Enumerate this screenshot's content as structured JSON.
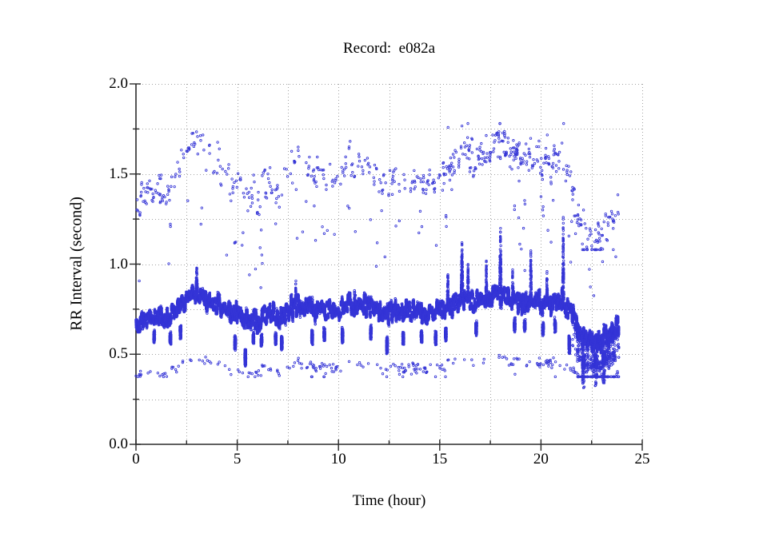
{
  "page": {
    "background": "#ffffff"
  },
  "chart_data": {
    "type": "scatter",
    "title": "Record:  e082a",
    "xlabel": "Time (hour)",
    "ylabel": "RR Interval (second)",
    "xlim": [
      0,
      25
    ],
    "ylim": [
      0.0,
      2.0
    ],
    "x_ticks": {
      "values": [
        0,
        5,
        10,
        15,
        20,
        25
      ],
      "labels": [
        "0",
        "5",
        "10",
        "15",
        "20",
        "25"
      ],
      "minor_values": [
        2.5,
        7.5,
        12.5,
        17.5,
        22.5
      ]
    },
    "y_ticks": {
      "values": [
        0.0,
        0.5,
        1.0,
        1.5,
        2.0
      ],
      "labels": [
        "0.0",
        "0.5",
        "1.0",
        "1.5",
        "2.0"
      ],
      "minor_values": [
        0.25,
        0.75,
        1.25,
        1.75
      ]
    },
    "grid": {
      "show": true,
      "style": "dotted",
      "color": "#a3a3a3",
      "x_step": 2.5,
      "y_step": 0.25
    },
    "axis_color": "#2b2b2b",
    "text_color": "#000000",
    "marker": {
      "shape": "open-circle",
      "color": "#3535d6",
      "radius": 1.25,
      "stroke_width": 0.85
    },
    "legend": {
      "show": false
    },
    "series": [
      {
        "name": "RR intervals",
        "time_start_hours": 0.0,
        "time_end_hours": 23.85,
        "seed": 1306421,
        "band_profile": [
          [
            0.0,
            0.66
          ],
          [
            0.5,
            0.7
          ],
          [
            1.0,
            0.72
          ],
          [
            1.5,
            0.71
          ],
          [
            2.0,
            0.76
          ],
          [
            2.5,
            0.81
          ],
          [
            3.0,
            0.83
          ],
          [
            3.5,
            0.8
          ],
          [
            4.0,
            0.78
          ],
          [
            4.5,
            0.74
          ],
          [
            5.0,
            0.72
          ],
          [
            5.5,
            0.7
          ],
          [
            6.0,
            0.69
          ],
          [
            6.5,
            0.73
          ],
          [
            7.0,
            0.72
          ],
          [
            7.5,
            0.75
          ],
          [
            8.0,
            0.78
          ],
          [
            8.5,
            0.76
          ],
          [
            9.0,
            0.74
          ],
          [
            9.5,
            0.74
          ],
          [
            10.0,
            0.75
          ],
          [
            10.5,
            0.78
          ],
          [
            11.0,
            0.79
          ],
          [
            11.5,
            0.77
          ],
          [
            12.0,
            0.75
          ],
          [
            12.5,
            0.73
          ],
          [
            13.0,
            0.74
          ],
          [
            13.5,
            0.75
          ],
          [
            14.0,
            0.73
          ],
          [
            14.5,
            0.72
          ],
          [
            15.0,
            0.74
          ],
          [
            15.5,
            0.77
          ],
          [
            16.0,
            0.8
          ],
          [
            16.5,
            0.79
          ],
          [
            17.0,
            0.8
          ],
          [
            17.5,
            0.82
          ],
          [
            18.0,
            0.83
          ],
          [
            18.5,
            0.8
          ],
          [
            19.0,
            0.79
          ],
          [
            19.5,
            0.81
          ],
          [
            20.0,
            0.79
          ],
          [
            20.5,
            0.78
          ],
          [
            21.0,
            0.81
          ],
          [
            21.5,
            0.73
          ],
          [
            22.0,
            0.6
          ],
          [
            22.5,
            0.57
          ],
          [
            23.0,
            0.58
          ],
          [
            23.5,
            0.63
          ],
          [
            24.0,
            0.68
          ]
        ],
        "up_spikes": [
          {
            "t": 3.0,
            "top": 0.95,
            "w": 0.04
          },
          {
            "t": 7.9,
            "top": 0.92,
            "w": 0.03
          },
          {
            "t": 10.8,
            "top": 0.93,
            "w": 0.05
          },
          {
            "t": 15.4,
            "top": 0.96,
            "w": 0.04
          },
          {
            "t": 16.1,
            "top": 1.12,
            "w": 0.05
          },
          {
            "t": 16.4,
            "top": 1.0,
            "w": 0.03
          },
          {
            "t": 17.3,
            "top": 1.02,
            "w": 0.04
          },
          {
            "t": 18.0,
            "top": 1.27,
            "w": 0.05
          },
          {
            "t": 18.6,
            "top": 0.98,
            "w": 0.03
          },
          {
            "t": 19.5,
            "top": 1.1,
            "w": 0.04
          },
          {
            "t": 20.3,
            "top": 0.92,
            "w": 0.04
          },
          {
            "t": 21.1,
            "top": 1.27,
            "w": 0.04
          }
        ],
        "down_spikes": [
          {
            "t": 0.9,
            "low": 0.56
          },
          {
            "t": 1.7,
            "low": 0.55
          },
          {
            "t": 2.2,
            "low": 0.58
          },
          {
            "t": 4.9,
            "low": 0.52
          },
          {
            "t": 5.4,
            "low": 0.43
          },
          {
            "t": 5.8,
            "low": 0.55
          },
          {
            "t": 6.2,
            "low": 0.54
          },
          {
            "t": 6.9,
            "low": 0.55
          },
          {
            "t": 7.2,
            "low": 0.52
          },
          {
            "t": 8.7,
            "low": 0.55
          },
          {
            "t": 9.3,
            "low": 0.57
          },
          {
            "t": 10.2,
            "low": 0.56
          },
          {
            "t": 11.6,
            "low": 0.58
          },
          {
            "t": 12.4,
            "low": 0.5
          },
          {
            "t": 13.2,
            "low": 0.55
          },
          {
            "t": 14.1,
            "low": 0.56
          },
          {
            "t": 14.8,
            "low": 0.55
          },
          {
            "t": 15.3,
            "low": 0.57
          },
          {
            "t": 16.8,
            "low": 0.6
          },
          {
            "t": 18.7,
            "low": 0.62
          },
          {
            "t": 19.2,
            "low": 0.62
          },
          {
            "t": 20.1,
            "low": 0.6
          },
          {
            "t": 20.7,
            "low": 0.62
          },
          {
            "t": 21.4,
            "low": 0.5
          },
          {
            "t": 22.1,
            "low": 0.42
          },
          {
            "t": 22.7,
            "low": 0.42
          },
          {
            "t": 23.1,
            "low": 0.44
          }
        ],
        "upper_cloud": {
          "factor": 2.0,
          "jitter": 0.025,
          "min": 1.08,
          "max": 1.78,
          "base_prob": 0.0042,
          "boost_windows": [
            {
              "range": [
                15.0,
                21.3
              ],
              "mult": 2.0
            },
            {
              "range": [
                0.0,
                1.3
              ],
              "mult": 1.6
            },
            {
              "range": [
                21.7,
                23.85
              ],
              "mult": 1.4
            }
          ]
        },
        "lower_cloud": {
          "factor": 0.57,
          "jitter": 0.02,
          "min": 0.375,
          "max": 0.52,
          "base_prob": 0.0013,
          "boost_windows": [
            {
              "range": [
                5.0,
                7.0
              ],
              "mult": 1.5
            },
            {
              "range": [
                8.4,
                10.2
              ],
              "mult": 2.5
            },
            {
              "range": [
                12.3,
                15.7
              ],
              "mult": 2.2
            },
            {
              "range": [
                19.8,
                20.5
              ],
              "mult": 2.0
            },
            {
              "range": [
                21.6,
                23.85
              ],
              "mult": 5.0
            }
          ]
        },
        "mid_dust_prob": 0.0004,
        "late_drop": {
          "range": [
            21.55,
            23.85
          ],
          "tail_prob": 0.05,
          "tail_depth": 0.15
        }
      }
    ]
  }
}
